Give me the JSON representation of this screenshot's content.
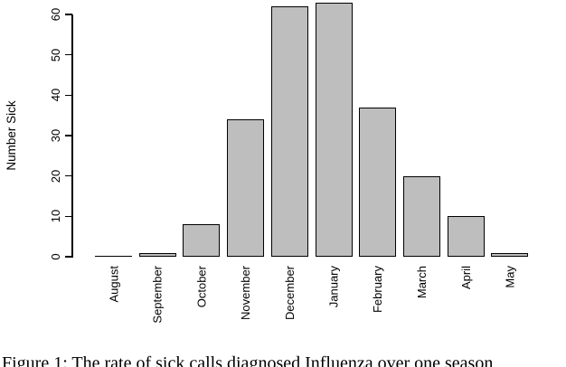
{
  "chart_data": {
    "type": "bar",
    "categories": [
      "August",
      "September",
      "October",
      "November",
      "December",
      "January",
      "February",
      "March",
      "April",
      "May"
    ],
    "values": [
      0,
      1,
      8,
      34,
      62,
      63,
      37,
      20,
      10,
      1
    ],
    "title": "",
    "xlabel": "",
    "ylabel": "Number Sick",
    "ylim": [
      0,
      63
    ],
    "yticks": [
      0,
      10,
      20,
      30,
      40,
      50,
      60
    ],
    "grid": false,
    "legend_position": "none",
    "bar_fill_color": "#bebebe",
    "bar_border_color": "#000000",
    "axis_color": "#000000",
    "tick_label_orientation": "rotated-90"
  },
  "caption": {
    "text": "Figure 1: The rate of sick calls diagnosed Influenza over one season"
  }
}
